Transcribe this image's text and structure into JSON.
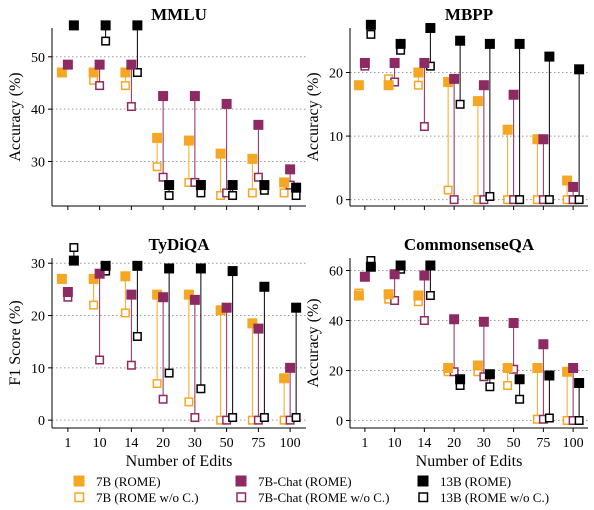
{
  "chart_data": {
    "type": "scatter",
    "xlabel": "Number of Edits",
    "categories": [
      "1",
      "10",
      "14",
      "20",
      "30",
      "50",
      "75",
      "100"
    ],
    "series_styles": [
      {
        "key": "7b",
        "label": "7B (ROME)",
        "color": "#f5a623",
        "filled": true
      },
      {
        "key": "7bc",
        "label": "7B-Chat (ROME)",
        "color": "#8e2a63",
        "filled": true
      },
      {
        "key": "13b",
        "label": "13B (ROME)",
        "color": "#000000",
        "filled": true
      },
      {
        "key": "7b_woc",
        "label": "7B (ROME w/o C.)",
        "color": "#f5a623",
        "filled": false
      },
      {
        "key": "7bc_woc",
        "label": "7B-Chat (ROME w/o C.)",
        "color": "#8e2a63",
        "filled": false
      },
      {
        "key": "13b_woc",
        "label": "13B (ROME w/o C.)",
        "color": "#000000",
        "filled": false
      }
    ],
    "legend_order": [
      "7b",
      "7bc",
      "13b",
      "7b_woc",
      "7bc_woc",
      "13b_woc"
    ],
    "panels": [
      {
        "title": "MMLU",
        "ylabel": "Accuracy (%)",
        "ylim": [
          21.5,
          55.5
        ],
        "yticks": [
          30,
          40,
          50
        ],
        "show_xticklabels": false,
        "show_xlabel": false,
        "series": {
          "7b": [
            47,
            47,
            47,
            34.5,
            34,
            31.5,
            30.5,
            26
          ],
          "7b_woc": [
            47,
            45.5,
            44.5,
            29,
            26,
            23.5,
            24,
            24
          ],
          "7bc": [
            48.5,
            48.5,
            48.5,
            42.5,
            42.5,
            41,
            37,
            28.5
          ],
          "7bc_woc": [
            48.5,
            44.5,
            40.5,
            27,
            26,
            24,
            27,
            25.5
          ],
          "13b": [
            56,
            56,
            56,
            25.5,
            25.5,
            25.5,
            25.5,
            25
          ],
          "13b_woc": [
            56,
            53,
            47,
            23.5,
            24,
            23.5,
            24.5,
            23.5
          ]
        }
      },
      {
        "title": "MBPP",
        "ylabel": "Accuracy (%)",
        "ylim": [
          -1,
          27
        ],
        "yticks": [
          0,
          10,
          20
        ],
        "show_xticklabels": false,
        "show_xlabel": false,
        "series": {
          "7b": [
            18,
            18,
            20,
            18.5,
            15.5,
            11,
            9.5,
            3
          ],
          "7b_woc": [
            18,
            19,
            18,
            1.5,
            0,
            0,
            0,
            0
          ],
          "7bc": [
            21.5,
            21.5,
            21.5,
            19,
            18,
            16.5,
            9.5,
            2
          ],
          "7bc_woc": [
            21,
            18.5,
            11.5,
            0,
            0,
            0,
            0,
            0
          ],
          "13b": [
            27.5,
            24.5,
            27,
            25,
            24.5,
            24.5,
            22.5,
            20.5
          ],
          "13b_woc": [
            26,
            23.5,
            21,
            15,
            0.5,
            0,
            0,
            0
          ]
        }
      },
      {
        "title": "TyDiQA",
        "ylabel": "F1 Score (%)",
        "ylim": [
          -1.5,
          31
        ],
        "yticks": [
          0,
          10,
          20,
          30
        ],
        "show_xticklabels": true,
        "show_xlabel": true,
        "series": {
          "7b": [
            27,
            27,
            27.5,
            24,
            24,
            21,
            18.5,
            8
          ],
          "7b_woc": [
            27,
            22,
            20.5,
            7,
            3.5,
            0,
            0,
            0
          ],
          "7bc": [
            24.5,
            28,
            24,
            23.5,
            23,
            21.5,
            17.5,
            10
          ],
          "7bc_woc": [
            23.5,
            11.5,
            10.5,
            4,
            0.5,
            0,
            0,
            0
          ],
          "13b": [
            30.5,
            29.5,
            29.5,
            29,
            29,
            28.5,
            25.5,
            21.5
          ],
          "13b_woc": [
            33,
            28.5,
            16,
            9,
            6,
            0.5,
            0.5,
            0.5
          ]
        }
      },
      {
        "title": "CommonsenseQA",
        "ylabel": "Accuracy (%)",
        "ylim": [
          -3,
          65
        ],
        "yticks": [
          0,
          20,
          40,
          60
        ],
        "show_xticklabels": true,
        "show_xlabel": true,
        "series": {
          "7b": [
            50,
            50.5,
            50,
            21,
            22,
            21,
            21,
            19.5
          ],
          "7b_woc": [
            51,
            48.5,
            47.5,
            19.5,
            19.5,
            14,
            0.5,
            0
          ],
          "7bc": [
            57.5,
            58.5,
            58,
            40.5,
            39.5,
            39,
            30.5,
            21
          ],
          "7bc_woc": [
            57.5,
            48,
            40,
            19.5,
            17.5,
            20.5,
            0.5,
            0
          ],
          "13b": [
            61.5,
            62,
            62,
            16.5,
            18.5,
            16.5,
            18,
            15
          ],
          "13b_woc": [
            64,
            60.5,
            50,
            14,
            13.5,
            8.5,
            1,
            0
          ]
        }
      }
    ]
  }
}
